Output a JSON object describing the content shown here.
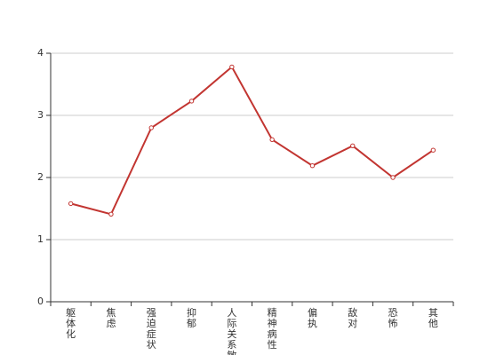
{
  "chart_data": {
    "type": "line",
    "categories": [
      "躯体化",
      "焦虑",
      "强迫症状",
      "抑郁",
      "人际关系敏感",
      "精神病性",
      "偏执",
      "敌对",
      "恐怖",
      "其他"
    ],
    "series": [
      {
        "color": "#c23531",
        "values": [
          1.58,
          1.41,
          2.8,
          3.23,
          3.78,
          2.61,
          2.19,
          2.51,
          2.0,
          2.44
        ]
      }
    ],
    "ylim": [
      0,
      4
    ],
    "yticks": [
      0,
      1,
      2,
      3,
      4
    ],
    "grid": true
  }
}
